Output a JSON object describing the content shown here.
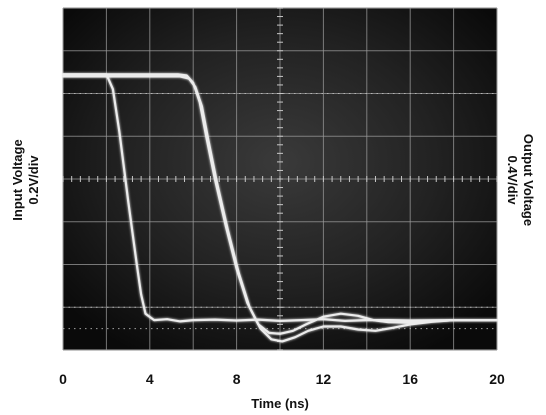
{
  "chart_data": {
    "type": "line",
    "xlabel": "Time (ns)",
    "xlim": [
      0,
      20
    ],
    "x_ticks": [
      "0",
      "4",
      "8",
      "12",
      "16",
      "20"
    ],
    "ylabel_left": [
      "Input Voltage",
      "0.2V/div"
    ],
    "ylabel_right": [
      "Output Voltage",
      "0.4V/div"
    ],
    "ylim_div": [
      0,
      8
    ],
    "grid": true,
    "background": "oscilloscope-screen",
    "series": [
      {
        "x": [
          0,
          2.0,
          2.3,
          2.6,
          3.0,
          3.4,
          3.6,
          3.8,
          4.2,
          4.8,
          5.4,
          6.0,
          7.0,
          8.0,
          9.0,
          10.0,
          11.0,
          12.0,
          13.0,
          14.0,
          15.0,
          16.0,
          18.0,
          20.0
        ],
        "y": [
          6.45,
          6.45,
          6.1,
          5.1,
          3.5,
          2.0,
          1.3,
          0.85,
          0.7,
          0.72,
          0.67,
          0.7,
          0.71,
          0.69,
          0.71,
          0.68,
          0.7,
          0.72,
          0.68,
          0.7,
          0.7,
          0.69,
          0.7,
          0.7
        ]
      },
      {
        "x": [
          0,
          5.3,
          5.7,
          6.0,
          6.3,
          6.6,
          7.0,
          7.5,
          8.0,
          8.5,
          9.0,
          9.5,
          10.0,
          10.6,
          11.2,
          12.0,
          12.8,
          13.6,
          14.3,
          15.0,
          16.0,
          17.0,
          18.0,
          20.0
        ],
        "y": [
          6.45,
          6.45,
          6.42,
          6.25,
          5.8,
          5.0,
          4.0,
          2.9,
          1.9,
          1.1,
          0.6,
          0.4,
          0.38,
          0.45,
          0.6,
          0.78,
          0.85,
          0.8,
          0.7,
          0.65,
          0.64,
          0.67,
          0.7,
          0.7
        ]
      },
      {
        "x": [
          0,
          5.4,
          5.8,
          6.1,
          6.4,
          6.7,
          7.1,
          7.6,
          8.1,
          8.6,
          9.1,
          9.6,
          10.1,
          10.7,
          11.3,
          12.0,
          12.8,
          13.6,
          14.4,
          15.2,
          16.0,
          17.0,
          18.0,
          20.0
        ],
        "y": [
          6.4,
          6.4,
          6.35,
          6.15,
          5.7,
          4.9,
          3.9,
          2.8,
          1.8,
          1.0,
          0.5,
          0.25,
          0.2,
          0.3,
          0.45,
          0.55,
          0.55,
          0.48,
          0.45,
          0.52,
          0.6,
          0.66,
          0.7,
          0.7
        ]
      }
    ]
  }
}
